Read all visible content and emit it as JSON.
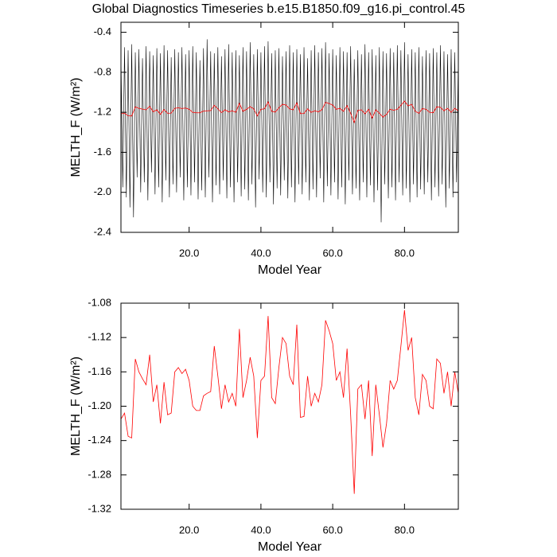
{
  "chart_data": [
    {
      "type": "line",
      "title": "Global Diagnostics Timeseries b.e15.B1850.f09_g16.pi_control.45",
      "x_label": "Model Year",
      "y_label": "MELTH_F (W/m²)",
      "xlim": [
        1,
        95
      ],
      "ylim": [
        -2.4,
        -0.3
      ],
      "xticks": [
        {
          "value": 20,
          "label": "20.0"
        },
        {
          "value": 40,
          "label": "40.0"
        },
        {
          "value": 60,
          "label": "60.0"
        },
        {
          "value": 80,
          "label": "80.0"
        }
      ],
      "yticks": [
        -0.4,
        -0.8,
        -1.2,
        -1.6,
        {
          "value": -2,
          "label": "-2.0"
        },
        -2.4
      ],
      "series": [
        {
          "color": "#000000",
          "x": [
            1,
            1.5,
            2,
            2.5,
            3,
            3.5,
            4,
            4.5,
            5,
            5.5,
            6,
            6.5,
            7,
            7.5,
            8,
            8.5,
            9,
            9.5,
            10,
            10.5,
            11,
            11.5,
            12,
            12.5,
            13,
            13.5,
            14,
            14.5,
            15,
            15.5,
            16,
            16.5,
            17,
            17.5,
            18,
            18.5,
            19,
            19.5,
            20,
            20.5,
            21,
            21.5,
            22,
            22.5,
            23,
            23.5,
            24,
            24.5,
            25,
            25.5,
            26,
            26.5,
            27,
            27.5,
            28,
            28.5,
            29,
            29.5,
            30,
            30.5,
            31,
            31.5,
            32,
            32.5,
            33,
            33.5,
            34,
            34.5,
            35,
            35.5,
            36,
            36.5,
            37,
            37.5,
            38,
            38.5,
            39,
            39.5,
            40,
            40.5,
            41,
            41.5,
            42,
            42.5,
            43,
            43.5,
            44,
            44.5,
            45,
            45.5,
            46,
            46.5,
            47,
            47.5,
            48,
            48.5,
            49,
            49.5,
            50,
            50.5,
            51,
            51.5,
            52,
            52.5,
            53,
            53.5,
            54,
            54.5,
            55,
            55.5,
            56,
            56.5,
            57,
            57.5,
            58,
            58.5,
            59,
            59.5,
            60,
            60.5,
            61,
            61.5,
            62,
            62.5,
            63,
            63.5,
            64,
            64.5,
            65,
            65.5,
            66,
            66.5,
            67,
            67.5,
            68,
            68.5,
            69,
            69.5,
            70,
            70.5,
            71,
            71.5,
            72,
            72.5,
            73,
            73.5,
            74,
            74.5,
            75,
            75.5,
            76,
            76.5,
            77,
            77.5,
            78,
            78.5,
            79,
            79.5,
            80,
            80.5,
            81,
            81.5,
            82,
            82.5,
            83,
            83.5,
            84,
            84.5,
            85,
            85.5,
            86,
            86.5,
            87,
            87.5,
            88,
            88.5,
            89,
            89.5,
            90,
            90.5,
            91,
            91.5,
            92,
            92.5,
            93,
            93.5,
            94,
            94.5,
            95
          ],
          "values": [
            -0.62,
            -1.95,
            -0.55,
            -2.05,
            -0.58,
            -2.15,
            -0.52,
            -2.25,
            -0.6,
            -1.85,
            -0.57,
            -2.0,
            -0.66,
            -1.9,
            -0.54,
            -2.08,
            -0.59,
            -1.8,
            -0.63,
            -2.02,
            -0.56,
            -1.95,
            -0.61,
            -2.1,
            -0.53,
            -1.88,
            -0.58,
            -2.05,
            -0.65,
            -1.92,
            -0.57,
            -2.0,
            -0.6,
            -1.85,
            -0.55,
            -2.08,
            -0.62,
            -1.95,
            -0.58,
            -2.03,
            -0.54,
            -1.9,
            -0.6,
            -2.07,
            -0.68,
            -1.98,
            -0.56,
            -2.05,
            -0.47,
            -1.85,
            -0.59,
            -2.1,
            -0.61,
            -1.93,
            -0.55,
            -2.02,
            -0.64,
            -1.88,
            -0.57,
            -2.06,
            -0.52,
            -1.95,
            -0.6,
            -2.1,
            -0.58,
            -1.9,
            -0.63,
            -2.04,
            -0.55,
            -1.97,
            -0.59,
            -2.08,
            -0.5,
            -1.92,
            -0.62,
            -2.15,
            -0.57,
            -1.87,
            -0.6,
            -2.0,
            -0.54,
            -2.05,
            -0.49,
            -1.9,
            -0.61,
            -2.12,
            -0.58,
            -1.96,
            -0.56,
            -2.03,
            -0.64,
            -1.88,
            -0.59,
            -2.06,
            -0.53,
            -1.95,
            -0.6,
            -2.1,
            -0.57,
            -1.92,
            -0.62,
            -2.02,
            -0.55,
            -1.9,
            -0.66,
            -2.08,
            -0.58,
            -1.97,
            -0.53,
            -2.05,
            -0.6,
            -1.86,
            -0.56,
            -2.1,
            -0.5,
            -1.94,
            -0.61,
            -2.03,
            -0.57,
            -1.9,
            -0.63,
            -2.07,
            -0.55,
            -1.95,
            -0.59,
            -2.12,
            -0.6,
            -1.88,
            -0.54,
            -2.02,
            -0.67,
            -1.96,
            -0.58,
            -2.08,
            -0.62,
            -1.9,
            -0.52,
            -2.05,
            -0.6,
            -1.93,
            -0.57,
            -2.1,
            -0.63,
            -1.98,
            -0.55,
            -2.3,
            -0.59,
            -1.92,
            -0.61,
            -2.06,
            -0.56,
            -1.95,
            -0.6,
            -2.08,
            -0.53,
            -1.9,
            -0.58,
            -2.03,
            -0.5,
            -1.96,
            -0.62,
            -2.1,
            -0.57,
            -1.92,
            -0.6,
            -2.05,
            -0.55,
            -1.97,
            -0.64,
            -2.02,
            -0.58,
            -1.9,
            -0.61,
            -2.08,
            -0.56,
            -1.95,
            -0.6,
            -2.04,
            -0.53,
            -1.92,
            -0.59,
            -2.15,
            -0.62,
            -1.96,
            -0.57,
            -2.05,
            -0.6,
            -1.9,
            -0.65
          ]
        },
        {
          "color": "#ff0000",
          "x": [
            1,
            2,
            3,
            4,
            5,
            6,
            7,
            8,
            9,
            10,
            11,
            12,
            13,
            14,
            15,
            16,
            17,
            18,
            19,
            20,
            21,
            22,
            23,
            24,
            25,
            26,
            27,
            28,
            29,
            30,
            31,
            32,
            33,
            34,
            35,
            36,
            37,
            38,
            39,
            40,
            41,
            42,
            43,
            44,
            45,
            46,
            47,
            48,
            49,
            50,
            51,
            52,
            53,
            54,
            55,
            56,
            57,
            58,
            59,
            60,
            61,
            62,
            63,
            64,
            65,
            66,
            67,
            68,
            69,
            70,
            71,
            72,
            73,
            74,
            75,
            76,
            77,
            78,
            79,
            80,
            81,
            82,
            83,
            84,
            85,
            86,
            87,
            88,
            89,
            90,
            91,
            92,
            93,
            94,
            95
          ],
          "values": [
            -1.215,
            -1.208,
            -1.235,
            -1.237,
            -1.145,
            -1.16,
            -1.168,
            -1.175,
            -1.14,
            -1.195,
            -1.175,
            -1.22,
            -1.172,
            -1.21,
            -1.208,
            -1.16,
            -1.155,
            -1.162,
            -1.157,
            -1.17,
            -1.2,
            -1.205,
            -1.205,
            -1.188,
            -1.185,
            -1.183,
            -1.13,
            -1.165,
            -1.203,
            -1.175,
            -1.195,
            -1.185,
            -1.2,
            -1.11,
            -1.19,
            -1.17,
            -1.143,
            -1.165,
            -1.237,
            -1.17,
            -1.165,
            -1.095,
            -1.19,
            -1.197,
            -1.155,
            -1.12,
            -1.127,
            -1.165,
            -1.175,
            -1.105,
            -1.213,
            -1.212,
            -1.165,
            -1.2,
            -1.185,
            -1.195,
            -1.175,
            -1.1,
            -1.112,
            -1.127,
            -1.17,
            -1.16,
            -1.19,
            -1.133,
            -1.21,
            -1.302,
            -1.18,
            -1.175,
            -1.215,
            -1.17,
            -1.258,
            -1.175,
            -1.21,
            -1.248,
            -1.22,
            -1.17,
            -1.18,
            -1.17,
            -1.13,
            -1.088,
            -1.135,
            -1.12,
            -1.19,
            -1.21,
            -1.163,
            -1.17,
            -1.2,
            -1.203,
            -1.145,
            -1.15,
            -1.185,
            -1.16,
            -1.2,
            -1.16,
            -1.185
          ]
        }
      ]
    },
    {
      "type": "line",
      "x_label": "Model Year",
      "y_label": "MELTH_F (W/m²)",
      "xlim": [
        1,
        95
      ],
      "ylim": [
        -1.32,
        -1.08
      ],
      "xticks": [
        {
          "value": 20,
          "label": "20.0"
        },
        {
          "value": 40,
          "label": "40.0"
        },
        {
          "value": 60,
          "label": "60.0"
        },
        {
          "value": 80,
          "label": "80.0"
        }
      ],
      "yticks": [
        -1.08,
        -1.12,
        -1.16,
        {
          "value": -1.2,
          "label": "-1.20"
        },
        -1.24,
        -1.28,
        -1.32
      ],
      "series": [
        {
          "color": "#ff0000",
          "x": [
            1,
            2,
            3,
            4,
            5,
            6,
            7,
            8,
            9,
            10,
            11,
            12,
            13,
            14,
            15,
            16,
            17,
            18,
            19,
            20,
            21,
            22,
            23,
            24,
            25,
            26,
            27,
            28,
            29,
            30,
            31,
            32,
            33,
            34,
            35,
            36,
            37,
            38,
            39,
            40,
            41,
            42,
            43,
            44,
            45,
            46,
            47,
            48,
            49,
            50,
            51,
            52,
            53,
            54,
            55,
            56,
            57,
            58,
            59,
            60,
            61,
            62,
            63,
            64,
            65,
            66,
            67,
            68,
            69,
            70,
            71,
            72,
            73,
            74,
            75,
            76,
            77,
            78,
            79,
            80,
            81,
            82,
            83,
            84,
            85,
            86,
            87,
            88,
            89,
            90,
            91,
            92,
            93,
            94,
            95
          ],
          "values": [
            -1.215,
            -1.208,
            -1.235,
            -1.237,
            -1.145,
            -1.16,
            -1.168,
            -1.175,
            -1.14,
            -1.195,
            -1.175,
            -1.22,
            -1.172,
            -1.21,
            -1.208,
            -1.16,
            -1.155,
            -1.162,
            -1.157,
            -1.17,
            -1.2,
            -1.205,
            -1.205,
            -1.188,
            -1.185,
            -1.183,
            -1.13,
            -1.165,
            -1.203,
            -1.175,
            -1.195,
            -1.185,
            -1.2,
            -1.11,
            -1.19,
            -1.17,
            -1.143,
            -1.165,
            -1.237,
            -1.17,
            -1.165,
            -1.095,
            -1.19,
            -1.197,
            -1.155,
            -1.12,
            -1.127,
            -1.165,
            -1.175,
            -1.105,
            -1.213,
            -1.212,
            -1.165,
            -1.2,
            -1.185,
            -1.195,
            -1.175,
            -1.1,
            -1.112,
            -1.127,
            -1.17,
            -1.16,
            -1.19,
            -1.133,
            -1.21,
            -1.302,
            -1.18,
            -1.175,
            -1.215,
            -1.17,
            -1.258,
            -1.175,
            -1.21,
            -1.248,
            -1.22,
            -1.17,
            -1.18,
            -1.17,
            -1.13,
            -1.088,
            -1.135,
            -1.12,
            -1.19,
            -1.21,
            -1.163,
            -1.17,
            -1.2,
            -1.203,
            -1.145,
            -1.15,
            -1.185,
            -1.16,
            -1.2,
            -1.16,
            -1.185
          ]
        }
      ]
    }
  ]
}
